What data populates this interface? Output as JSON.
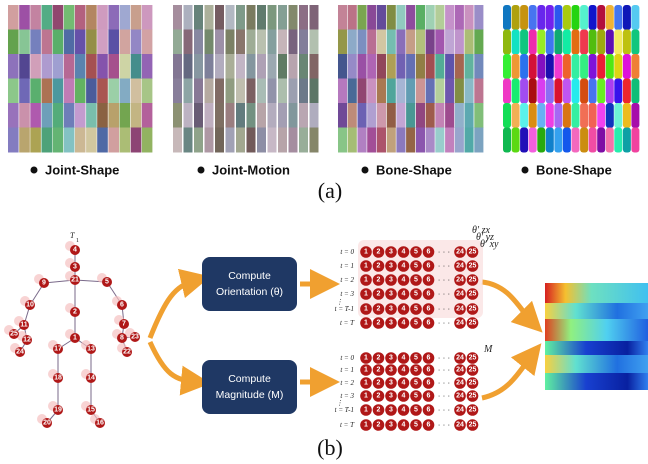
{
  "panel_a": {
    "captions": [
      "Joint-Shape",
      "Joint-Motion",
      "Bone-Shape",
      "Bone-Shape"
    ],
    "label": "(a)"
  },
  "panel_b": {
    "label": "(b)",
    "skeleton": {
      "top_label": "T",
      "top_sub": "1",
      "joints": [
        "4",
        "3",
        "21",
        "5",
        "9",
        "10",
        "6",
        "11",
        "7",
        "25",
        "12",
        "8",
        "23",
        "24",
        "22",
        "2",
        "1",
        "17",
        "13",
        "18",
        "14",
        "19",
        "15",
        "20",
        "16"
      ]
    },
    "boxes": [
      {
        "line1": "Compute",
        "line2": "Orientation (θ)"
      },
      {
        "line1": "Compute",
        "line2": "Magnitude (M)"
      }
    ],
    "grids": [
      {
        "rows": [
          "t = 0",
          "t = 1",
          "t = 2",
          "t = 3",
          "⋮",
          "t = T-1",
          "t = T"
        ],
        "cells": [
          "1",
          "2",
          "3",
          "4",
          "5",
          "6",
          "24",
          "25"
        ],
        "ellipsis": "· · ·",
        "annotations": [
          "θ′ zx",
          "θ′ yz",
          "θ′ xy"
        ]
      },
      {
        "rows": [
          "t = 0",
          "t = 1",
          "t = 2",
          "t = 3",
          "⋮",
          "t = T-1",
          "t = T"
        ],
        "cells": [
          "1",
          "2",
          "3",
          "4",
          "5",
          "6",
          "24",
          "25"
        ],
        "ellipsis": "· · ·",
        "annotations": [
          "M"
        ]
      }
    ]
  }
}
